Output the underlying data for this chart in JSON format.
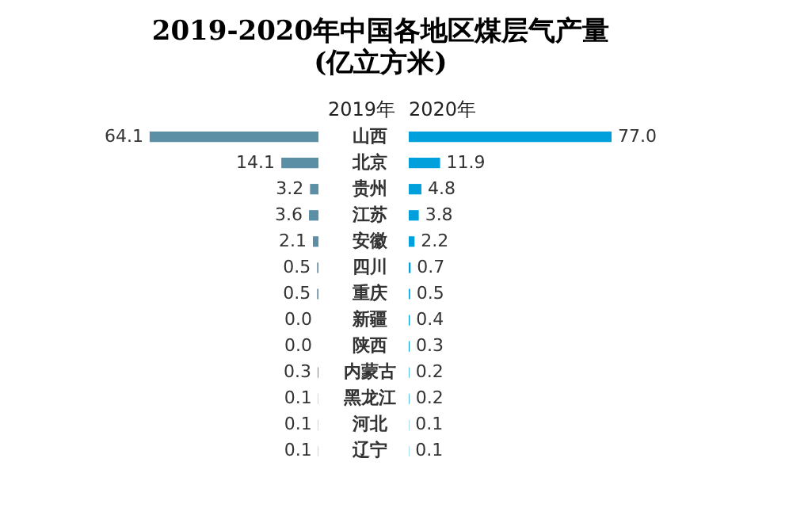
{
  "chart_data": [
    {
      "type": "bar",
      "orientation": "horizontal",
      "title": "2019-2020年中国各地区煤层气产量",
      "subtitle": "(亿立方米)",
      "categories": [
        "山西",
        "北京",
        "贵州",
        "江苏",
        "安徽",
        "四川",
        "重庆",
        "新疆",
        "陕西",
        "内蒙古",
        "黑龙江",
        "河北",
        "辽宁"
      ],
      "tick_labels": "y",
      "series": [
        {
          "name": "2019年",
          "color": "#5b8fa6",
          "values": [
            64.1,
            14.1,
            3.2,
            3.6,
            2.1,
            0.5,
            0.5,
            0.0,
            0.0,
            0.3,
            0.1,
            0.1,
            0.1
          ],
          "value_labels": [
            "64.1",
            "14.1",
            "3.2",
            "3.6",
            "2.1",
            "0.5",
            "0.5",
            "0.0",
            "0.0",
            "0.3",
            "0.1",
            "0.1",
            "0.1"
          ]
        }
      ]
    },
    {
      "type": "bar",
      "orientation": "horizontal",
      "categories": [
        "山西",
        "北京",
        "贵州",
        "江苏",
        "安徽",
        "四川",
        "重庆",
        "新疆",
        "陕西",
        "内蒙古",
        "黑龙江",
        "河北",
        "辽宁"
      ],
      "tick_labels": false,
      "series": [
        {
          "name": "2020年",
          "color": "#00a0dc",
          "values": [
            77.0,
            11.9,
            4.8,
            3.8,
            2.2,
            0.7,
            0.5,
            0.4,
            0.3,
            0.2,
            0.2,
            0.1,
            0.1
          ],
          "value_labels": [
            "77.0",
            "11.9",
            "4.8",
            "3.8",
            "2.2",
            "0.7",
            "0.5",
            "0.4",
            "0.3",
            "0.2",
            "0.2",
            "0.1",
            "0.1"
          ]
        }
      ]
    }
  ]
}
